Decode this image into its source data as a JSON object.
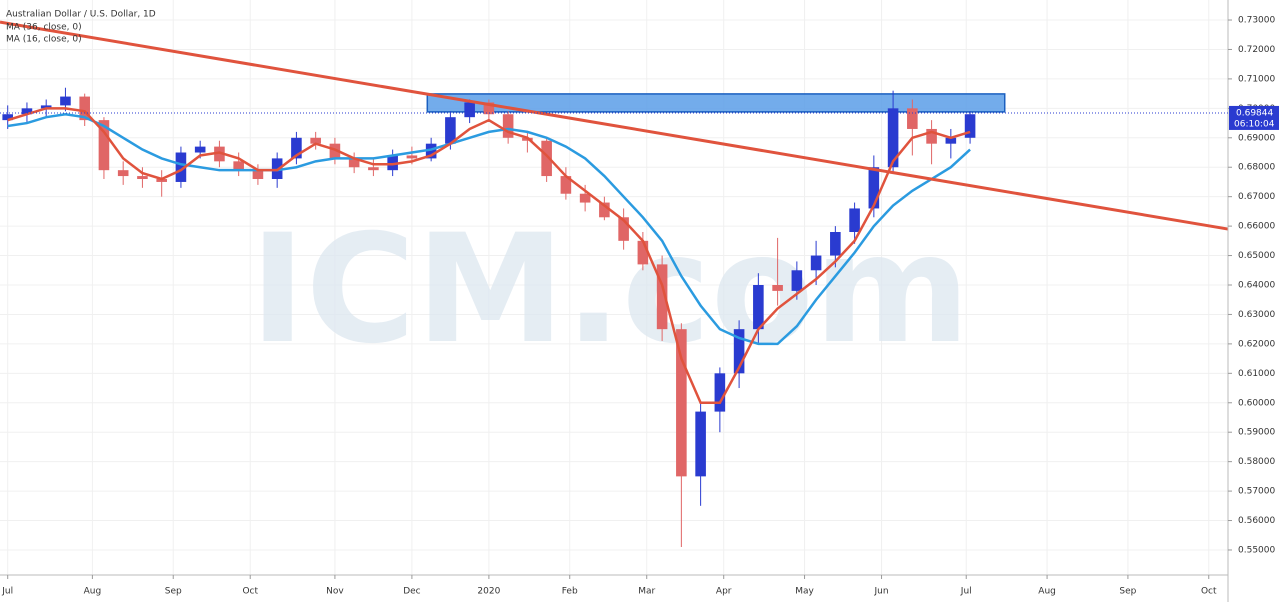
{
  "chart_data": {
    "type": "candlestick",
    "title": "Australian Dollar / U.S. Dollar, 1D",
    "watermark": "ICM.com",
    "up_color": "#2a3bd0",
    "down_color": "#e06666",
    "x": [
      0,
      5,
      10,
      15,
      20,
      25,
      30,
      35,
      40,
      45,
      50,
      55,
      60,
      65,
      70,
      75,
      80,
      85,
      90,
      95,
      100,
      105,
      110,
      115,
      120,
      125,
      130,
      135,
      140,
      145,
      150,
      155,
      160,
      165,
      170,
      175,
      180,
      185,
      190,
      195,
      200,
      205,
      210,
      215,
      220,
      225,
      230,
      235,
      240,
      245,
      250
    ],
    "open": [
      0.696,
      0.698,
      0.7,
      0.701,
      0.704,
      0.696,
      0.679,
      0.677,
      0.676,
      0.675,
      0.685,
      0.687,
      0.682,
      0.679,
      0.676,
      0.683,
      0.69,
      0.688,
      0.683,
      0.68,
      0.679,
      0.684,
      0.683,
      0.688,
      0.697,
      0.702,
      0.698,
      0.69,
      0.689,
      0.677,
      0.671,
      0.668,
      0.663,
      0.655,
      0.647,
      0.625,
      0.575,
      0.597,
      0.61,
      0.625,
      0.64,
      0.638,
      0.645,
      0.65,
      0.658,
      0.666,
      0.68,
      0.7,
      0.693,
      0.688,
      0.69
    ],
    "high": [
      0.701,
      0.702,
      0.703,
      0.707,
      0.705,
      0.697,
      0.682,
      0.68,
      0.679,
      0.687,
      0.689,
      0.689,
      0.685,
      0.681,
      0.685,
      0.692,
      0.692,
      0.69,
      0.685,
      0.683,
      0.686,
      0.687,
      0.69,
      0.699,
      0.703,
      0.703,
      0.699,
      0.692,
      0.69,
      0.68,
      0.674,
      0.67,
      0.666,
      0.658,
      0.65,
      0.627,
      0.6,
      0.612,
      0.628,
      0.644,
      0.656,
      0.648,
      0.655,
      0.66,
      0.668,
      0.684,
      0.706,
      0.703,
      0.696,
      0.693,
      0.699
    ],
    "low": [
      0.693,
      0.695,
      0.697,
      0.699,
      0.694,
      0.676,
      0.674,
      0.673,
      0.67,
      0.673,
      0.683,
      0.68,
      0.677,
      0.674,
      0.673,
      0.681,
      0.686,
      0.681,
      0.678,
      0.677,
      0.677,
      0.681,
      0.682,
      0.686,
      0.695,
      0.696,
      0.688,
      0.685,
      0.675,
      0.669,
      0.665,
      0.662,
      0.652,
      0.645,
      0.621,
      0.551,
      0.565,
      0.59,
      0.605,
      0.62,
      0.633,
      0.635,
      0.64,
      0.646,
      0.654,
      0.663,
      0.678,
      0.684,
      0.681,
      0.683,
      0.688
    ],
    "close": [
      0.698,
      0.7,
      0.701,
      0.704,
      0.696,
      0.679,
      0.677,
      0.676,
      0.675,
      0.685,
      0.687,
      0.682,
      0.679,
      0.676,
      0.683,
      0.69,
      0.688,
      0.683,
      0.68,
      0.679,
      0.684,
      0.683,
      0.688,
      0.697,
      0.702,
      0.698,
      0.69,
      0.689,
      0.677,
      0.671,
      0.668,
      0.663,
      0.655,
      0.647,
      0.625,
      0.575,
      0.597,
      0.61,
      0.625,
      0.64,
      0.638,
      0.645,
      0.65,
      0.658,
      0.666,
      0.68,
      0.7,
      0.693,
      0.688,
      0.69,
      0.698
    ],
    "series": [
      {
        "name": "MA (36, close, 0)",
        "color": "#2b9be0",
        "values": [
          0.694,
          0.695,
          0.697,
          0.698,
          0.697,
          0.694,
          0.69,
          0.686,
          0.683,
          0.681,
          0.68,
          0.679,
          0.679,
          0.679,
          0.679,
          0.68,
          0.682,
          0.683,
          0.683,
          0.683,
          0.684,
          0.685,
          0.686,
          0.688,
          0.69,
          0.692,
          0.693,
          0.692,
          0.69,
          0.687,
          0.683,
          0.677,
          0.67,
          0.663,
          0.655,
          0.643,
          0.633,
          0.625,
          0.622,
          0.62,
          0.62,
          0.626,
          0.635,
          0.643,
          0.651,
          0.66,
          0.667,
          0.672,
          0.676,
          0.68,
          0.686
        ]
      },
      {
        "name": "MA (16, close, 0)",
        "color": "#e0533d",
        "values": [
          0.696,
          0.698,
          0.7,
          0.7,
          0.699,
          0.692,
          0.683,
          0.678,
          0.676,
          0.679,
          0.684,
          0.685,
          0.683,
          0.679,
          0.679,
          0.684,
          0.688,
          0.686,
          0.683,
          0.681,
          0.681,
          0.682,
          0.684,
          0.688,
          0.693,
          0.696,
          0.692,
          0.69,
          0.684,
          0.677,
          0.672,
          0.667,
          0.662,
          0.655,
          0.64,
          0.615,
          0.6,
          0.6,
          0.612,
          0.625,
          0.632,
          0.637,
          0.642,
          0.648,
          0.655,
          0.667,
          0.682,
          0.69,
          0.692,
          0.69,
          0.692
        ]
      }
    ],
    "trendline": {
      "x": [
        -2,
        317
      ],
      "y": [
        0.7293,
        0.659
      ],
      "color": "#e0533d"
    },
    "zone": {
      "x": [
        109,
        259
      ],
      "y": [
        0.6988,
        0.7049
      ],
      "color": "#5b9ee8"
    },
    "last_price": {
      "value": 0.69844,
      "label": "0.69844"
    },
    "countdown": "06:10:04",
    "xlim": [
      -2,
      317
    ],
    "ylim": [
      0.5415,
      0.7368
    ],
    "xticks": [
      {
        "value": 0,
        "label": "Jul"
      },
      {
        "value": 22,
        "label": "Aug"
      },
      {
        "value": 43,
        "label": "Sep"
      },
      {
        "value": 63,
        "label": "Oct"
      },
      {
        "value": 85,
        "label": "Nov"
      },
      {
        "value": 105,
        "label": "Dec"
      },
      {
        "value": 125,
        "label": "2020"
      },
      {
        "value": 146,
        "label": "Feb"
      },
      {
        "value": 166,
        "label": "Mar"
      },
      {
        "value": 186,
        "label": "Apr"
      },
      {
        "value": 207,
        "label": "May"
      },
      {
        "value": 227,
        "label": "Jun"
      },
      {
        "value": 249,
        "label": "Jul"
      },
      {
        "value": 270,
        "label": "Aug"
      },
      {
        "value": 291,
        "label": "Sep"
      },
      {
        "value": 312,
        "label": "Oct"
      }
    ],
    "yticks": [
      {
        "value": 0.73,
        "label": "0.73000"
      },
      {
        "value": 0.72,
        "label": "0.72000"
      },
      {
        "value": 0.71,
        "label": "0.71000"
      },
      {
        "value": 0.7,
        "label": "0.70000"
      },
      {
        "value": 0.69,
        "label": "0.69000"
      },
      {
        "value": 0.68,
        "label": "0.68000"
      },
      {
        "value": 0.67,
        "label": "0.67000"
      },
      {
        "value": 0.66,
        "label": "0.66000"
      },
      {
        "value": 0.65,
        "label": "0.65000"
      },
      {
        "value": 0.64,
        "label": "0.64000"
      },
      {
        "value": 0.63,
        "label": "0.63000"
      },
      {
        "value": 0.62,
        "label": "0.62000"
      },
      {
        "value": 0.61,
        "label": "0.61000"
      },
      {
        "value": 0.6,
        "label": "0.60000"
      },
      {
        "value": 0.59,
        "label": "0.59000"
      },
      {
        "value": 0.58,
        "label": "0.58000"
      },
      {
        "value": 0.57,
        "label": "0.57000"
      },
      {
        "value": 0.56,
        "label": "0.56000"
      },
      {
        "value": 0.55,
        "label": "0.55000"
      }
    ],
    "grid": true
  }
}
